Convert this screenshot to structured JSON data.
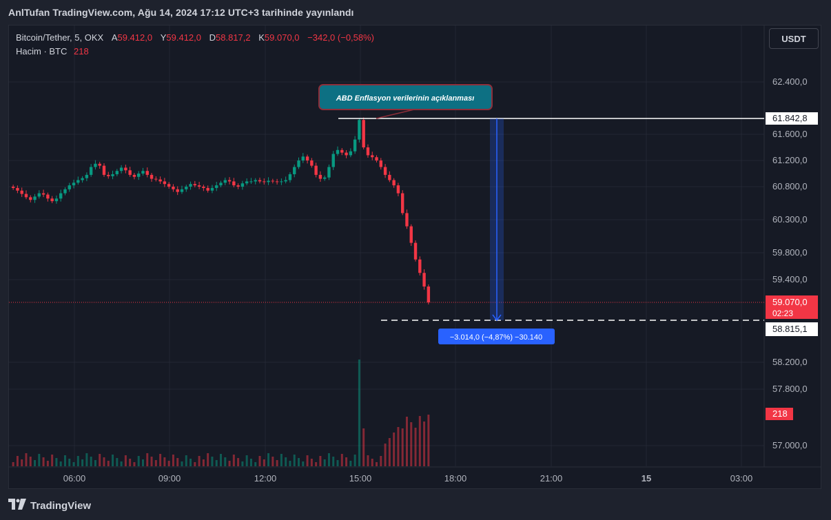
{
  "header": {
    "title": "AnlTufan TradingView.com, Ağu 14, 2024 17:12 UTC+3 tarihinde yayınlandı"
  },
  "legend": {
    "symbol": "Bitcoin/Tether, 5, OKX",
    "open_label": "A",
    "open": "59.412,0",
    "high_label": "Y",
    "high": "59.412,0",
    "low_label": "D",
    "low": "58.817,2",
    "close_label": "K",
    "close": "59.070,0",
    "change": "−342,0 (−0,58%)",
    "volume_label": "Hacim · BTC",
    "volume_value": "218"
  },
  "currency_button": "USDT",
  "annotation": {
    "text": "ABD Enflasyon verilerinin açıklanması"
  },
  "measure_label": "−3.014,0 (−4,87%) −30.140",
  "price_axis": {
    "ticks": [
      "62.400,0",
      "61.600,0",
      "61.200,0",
      "60.800,0",
      "60.300,0",
      "59.800,0",
      "59.400,0",
      "58.200,0",
      "57.800,0",
      "57.000,0"
    ],
    "tick_values": [
      62400,
      61600,
      61200,
      60800,
      60300,
      59800,
      59400,
      58200,
      57800,
      57000
    ],
    "high_label": "61.842,8",
    "current_label": "59.070,0",
    "countdown": "02:23",
    "low_label": "58.815,1",
    "volume_badge": "218"
  },
  "time_axis": {
    "ticks": [
      "06:00",
      "09:00",
      "12:00",
      "15:00",
      "18:00",
      "21:00",
      "15",
      "03:00"
    ]
  },
  "footer": {
    "logo_text": "TradingView"
  },
  "chart_data": {
    "type": "candlestick",
    "symbol": "Bitcoin/Tether",
    "interval": "5",
    "exchange": "OKX",
    "close_series_approx": [
      [
        0,
        60780
      ],
      [
        1,
        60740
      ],
      [
        2,
        60690
      ],
      [
        3,
        60640
      ],
      [
        4,
        60600
      ],
      [
        5,
        60650
      ],
      [
        6,
        60700
      ],
      [
        7,
        60680
      ],
      [
        8,
        60620
      ],
      [
        9,
        60580
      ],
      [
        10,
        60620
      ],
      [
        11,
        60700
      ],
      [
        12,
        60760
      ],
      [
        13,
        60820
      ],
      [
        14,
        60860
      ],
      [
        15,
        60900
      ],
      [
        16,
        60930
      ],
      [
        17,
        60980
      ],
      [
        18,
        61100
      ],
      [
        19,
        61150
      ],
      [
        20,
        61120
      ],
      [
        21,
        60980
      ],
      [
        22,
        60960
      ],
      [
        23,
        60990
      ],
      [
        24,
        61040
      ],
      [
        25,
        61090
      ],
      [
        26,
        61050
      ],
      [
        27,
        60980
      ],
      [
        28,
        60950
      ],
      [
        29,
        61000
      ],
      [
        30,
        61040
      ],
      [
        31,
        60980
      ],
      [
        32,
        60920
      ],
      [
        33,
        60910
      ],
      [
        34,
        60880
      ],
      [
        35,
        60840
      ],
      [
        36,
        60800
      ],
      [
        37,
        60760
      ],
      [
        38,
        60720
      ],
      [
        39,
        60760
      ],
      [
        40,
        60800
      ],
      [
        41,
        60840
      ],
      [
        42,
        60820
      ],
      [
        43,
        60800
      ],
      [
        44,
        60780
      ],
      [
        45,
        60740
      ],
      [
        46,
        60780
      ],
      [
        47,
        60820
      ],
      [
        48,
        60860
      ],
      [
        49,
        60900
      ],
      [
        50,
        60880
      ],
      [
        51,
        60820
      ],
      [
        52,
        60800
      ],
      [
        53,
        60850
      ],
      [
        54,
        60880
      ],
      [
        55,
        60880
      ],
      [
        56,
        60900
      ],
      [
        57,
        60880
      ],
      [
        58,
        60870
      ],
      [
        59,
        60890
      ],
      [
        60,
        60880
      ],
      [
        61,
        60870
      ],
      [
        62,
        60880
      ],
      [
        63,
        60900
      ],
      [
        64,
        60990
      ],
      [
        65,
        61100
      ],
      [
        66,
        61200
      ],
      [
        67,
        61260
      ],
      [
        68,
        61200
      ],
      [
        69,
        61120
      ],
      [
        70,
        60980
      ],
      [
        71,
        60920
      ],
      [
        72,
        60940
      ],
      [
        73,
        61100
      ],
      [
        74,
        61300
      ],
      [
        75,
        61360
      ],
      [
        76,
        61320
      ],
      [
        77,
        61280
      ],
      [
        78,
        61340
      ],
      [
        79,
        61520
      ],
      [
        80,
        61820
      ],
      [
        81,
        61400
      ],
      [
        82,
        61280
      ],
      [
        83,
        61250
      ],
      [
        84,
        61200
      ],
      [
        85,
        61100
      ],
      [
        86,
        60980
      ],
      [
        87,
        60900
      ],
      [
        88,
        60820
      ],
      [
        89,
        60700
      ],
      [
        90,
        60400
      ],
      [
        91,
        60200
      ],
      [
        92,
        59950
      ],
      [
        93,
        59700
      ],
      [
        94,
        59500
      ],
      [
        95,
        59300
      ],
      [
        96,
        59070
      ]
    ],
    "high": 61842.8,
    "low": 58815.1,
    "last_close": 59070.0,
    "last_volume": 218
  }
}
